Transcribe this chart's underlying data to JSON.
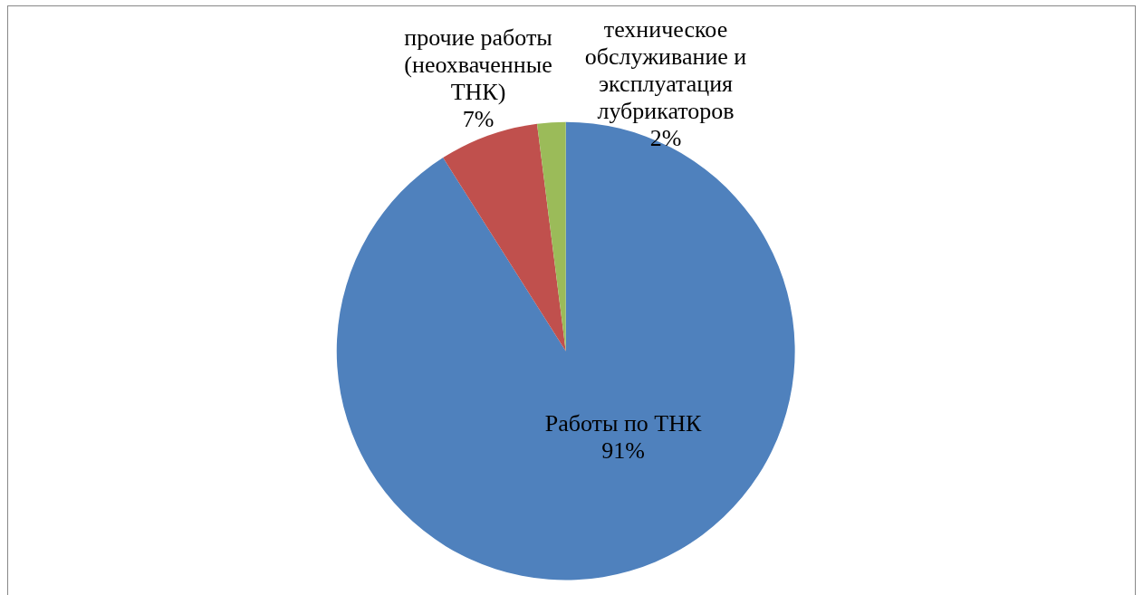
{
  "chart_data": {
    "type": "pie",
    "categories": [
      "Работы по ТНК",
      "прочие работы (неохваченные ТНК)",
      "техническое обслуживание и эксплуатация лубрикаторов"
    ],
    "values": [
      91,
      7,
      2
    ],
    "colors": [
      "#4f81bd",
      "#c0504d",
      "#9bbb59"
    ],
    "value_labels": [
      "91%",
      "7%",
      "2%"
    ],
    "legend": false
  }
}
